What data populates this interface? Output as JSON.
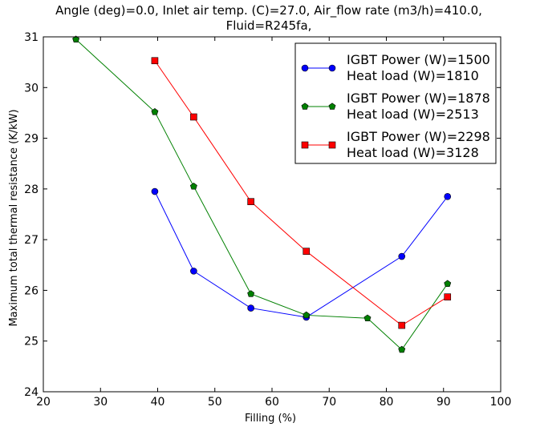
{
  "chart_data": {
    "type": "line",
    "title_line1": "Angle (deg)=0.0, Inlet air temp. (C)=27.0, Air_flow rate (m3/h)=410.0,",
    "title_line2": "Fluid=R245fa,",
    "xlabel": "Filling (%)",
    "ylabel": "Maximum total thermal resistance (K/kW)",
    "xlim": [
      20,
      100
    ],
    "ylim": [
      24,
      31
    ],
    "xticks": [
      20,
      30,
      40,
      50,
      60,
      70,
      80,
      90,
      100
    ],
    "yticks": [
      24,
      25,
      26,
      27,
      28,
      29,
      30,
      31
    ],
    "grid": false,
    "legend_position": "top-right",
    "series": [
      {
        "name_line1": "IGBT Power (W)=1500",
        "name_line2": "Heat load (W)=1810",
        "color": "#0000ff",
        "marker": "circle",
        "x": [
          39.5,
          46.3,
          56.3,
          66.0,
          82.7,
          90.7
        ],
        "y": [
          27.95,
          26.38,
          25.65,
          25.47,
          26.67,
          27.85
        ]
      },
      {
        "name_line1": "IGBT Power (W)=1878",
        "name_line2": "Heat load (W)=2513",
        "color": "#008000",
        "marker": "pentagon",
        "x": [
          25.7,
          39.5,
          46.3,
          56.3,
          66.0,
          76.7,
          82.7,
          90.7
        ],
        "y": [
          30.95,
          29.52,
          28.05,
          25.93,
          25.51,
          25.45,
          24.83,
          26.13
        ]
      },
      {
        "name_line1": "IGBT Power (W)=2298",
        "name_line2": "Heat load (W)=3128",
        "color": "#ff0000",
        "marker": "square",
        "x": [
          39.5,
          46.3,
          56.3,
          66.0,
          82.7,
          90.7
        ],
        "y": [
          30.53,
          29.42,
          27.75,
          26.77,
          25.31,
          25.87
        ]
      }
    ]
  }
}
